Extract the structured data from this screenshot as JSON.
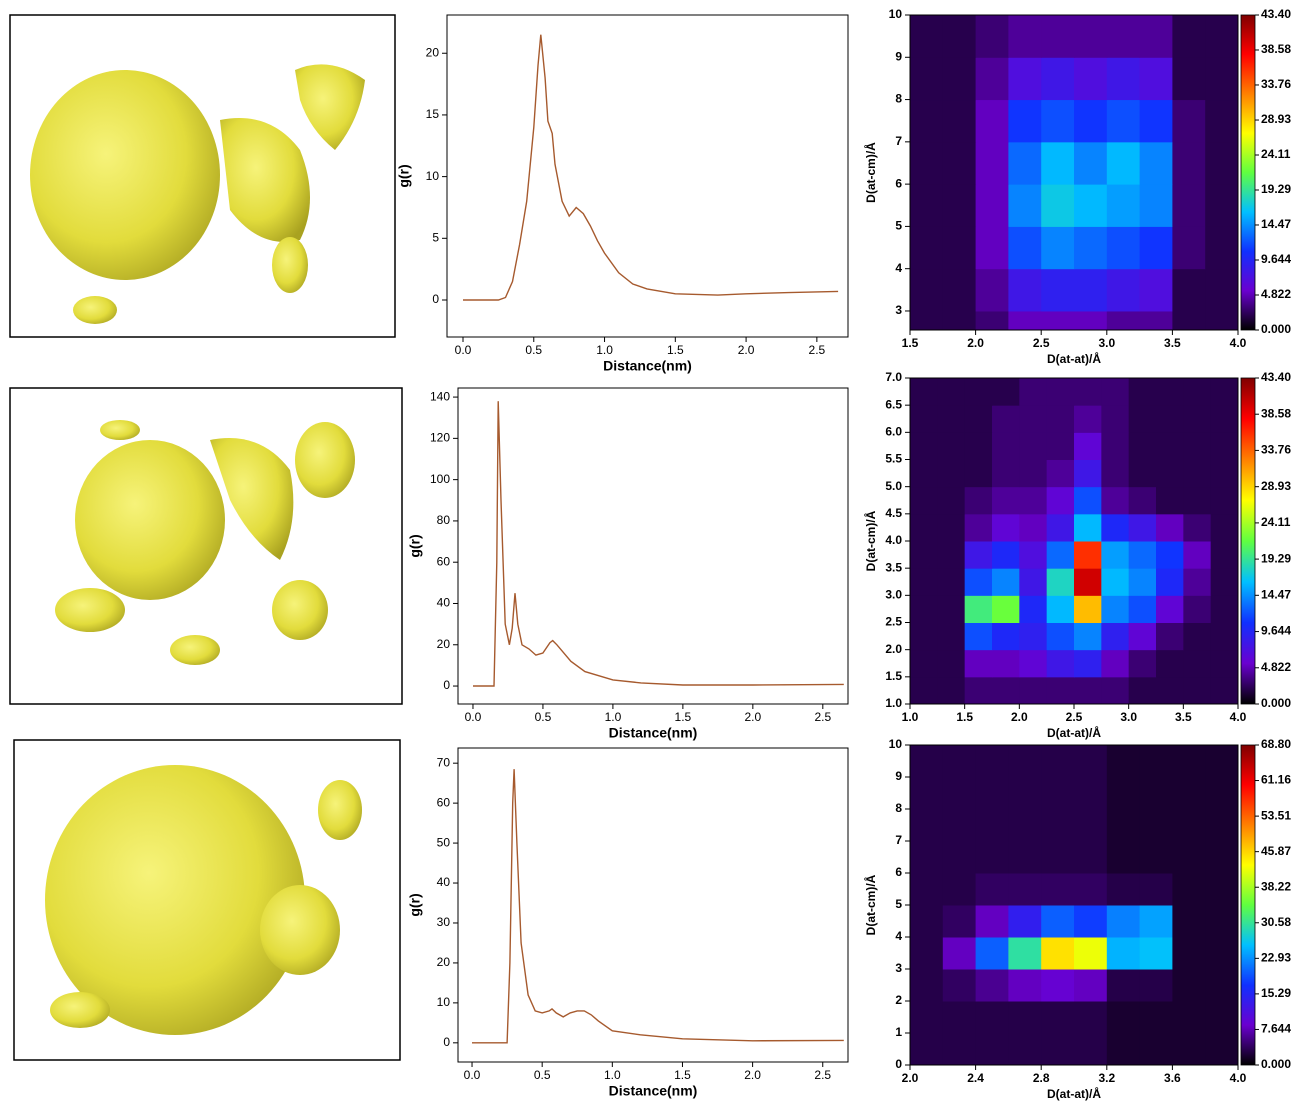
{
  "chart_data": [
    {
      "type": "line",
      "xlabel": "Distance(nm)",
      "ylabel": "g(r)",
      "color": "#a65a2e",
      "x": [
        0,
        0.25,
        0.3,
        0.35,
        0.4,
        0.45,
        0.5,
        0.53,
        0.55,
        0.58,
        0.6,
        0.63,
        0.65,
        0.7,
        0.75,
        0.8,
        0.85,
        0.9,
        0.95,
        1.0,
        1.1,
        1.2,
        1.3,
        1.5,
        1.8,
        2.0,
        2.3,
        2.65
      ],
      "values": [
        0,
        0,
        0.2,
        1.5,
        4.5,
        8,
        14,
        19,
        21.5,
        18,
        14.5,
        13.5,
        11,
        8,
        6.8,
        7.5,
        7,
        6,
        4.8,
        3.8,
        2.2,
        1.3,
        0.9,
        0.5,
        0.4,
        0.5,
        0.6,
        0.7
      ],
      "xlim": [
        -0.113,
        2.72
      ],
      "ylim": [
        -3,
        23.1
      ],
      "xticks": [
        {
          "value": 0,
          "label": "0.0"
        },
        0.5,
        {
          "value": 1,
          "label": "1.0"
        },
        1.5,
        {
          "value": 2,
          "label": "2.0"
        },
        2.5
      ],
      "yticks": [
        0,
        5,
        10,
        15,
        20
      ]
    },
    {
      "type": "heatmap",
      "xlabel": "D(at-at)/Å",
      "ylabel": "D(at-cm)/Å",
      "xlim": [
        1.5,
        4
      ],
      "ylim": [
        2.55,
        10
      ],
      "xticks": [
        1.5,
        {
          "value": 2,
          "label": "2.0"
        },
        2.5,
        {
          "value": 3,
          "label": "3.0"
        },
        3.5,
        {
          "value": 4,
          "label": "4.0"
        }
      ],
      "yticks": [
        3,
        4,
        5,
        6,
        7,
        8,
        9,
        10
      ],
      "xbins": [
        1.5,
        1.75,
        2,
        2.25,
        2.5,
        2.75,
        3,
        3.25,
        3.5,
        3.75,
        4
      ],
      "ybins": [
        2.55,
        3,
        4,
        5,
        6,
        7,
        8,
        9,
        10
      ],
      "z": [
        [
          2,
          2,
          3,
          5,
          5,
          5,
          4,
          4,
          2,
          2
        ],
        [
          2,
          2,
          4,
          8,
          9,
          9,
          8,
          7,
          2,
          2
        ],
        [
          2,
          2,
          5,
          12,
          14,
          13,
          12,
          11,
          3,
          2
        ],
        [
          2,
          2,
          5,
          14,
          17,
          16,
          15,
          14,
          3,
          2
        ],
        [
          2,
          2,
          5,
          13,
          16,
          14,
          16,
          14,
          3,
          2
        ],
        [
          2,
          2,
          5,
          11,
          12,
          11,
          12,
          11,
          3,
          2
        ],
        [
          2,
          2,
          4,
          7,
          8,
          7,
          8,
          7,
          2,
          2
        ],
        [
          2,
          2,
          3,
          4,
          4,
          4,
          4,
          4,
          2,
          2
        ]
      ],
      "zlim": [
        0,
        43.4
      ],
      "zticks": [
        {
          "value": 0,
          "label": "0.000"
        },
        4.822,
        9.644,
        14.47,
        19.29,
        24.11,
        28.93,
        33.76,
        38.58,
        {
          "value": 43.4,
          "label": "43.40"
        }
      ],
      "colors": [
        "#000000",
        "#6a00d0",
        "#1030ff",
        "#00c0ff",
        "#60ff40",
        "#ffff00",
        "#ff8000",
        "#ff0000",
        "#800000"
      ]
    },
    {
      "type": "line",
      "xlabel": "Distance(nm)",
      "ylabel": "g(r)",
      "color": "#a65a2e",
      "x": [
        0,
        0.15,
        0.17,
        0.18,
        0.2,
        0.23,
        0.26,
        0.28,
        0.3,
        0.32,
        0.35,
        0.4,
        0.45,
        0.5,
        0.55,
        0.57,
        0.6,
        0.7,
        0.8,
        1.0,
        1.2,
        1.5,
        2.0,
        2.65
      ],
      "values": [
        0,
        0,
        60,
        138,
        90,
        30,
        20,
        28,
        45,
        30,
        20,
        18,
        15,
        16,
        21,
        22,
        20,
        12,
        7,
        3,
        1.5,
        0.5,
        0.5,
        0.8
      ],
      "xlim": [
        -0.107,
        2.68
      ],
      "ylim": [
        -8.7,
        144.4
      ],
      "xticks": [
        {
          "value": 0,
          "label": "0.0"
        },
        0.5,
        {
          "value": 1,
          "label": "1.0"
        },
        1.5,
        {
          "value": 2,
          "label": "2.0"
        },
        2.5
      ],
      "yticks": [
        0,
        20,
        40,
        60,
        80,
        100,
        120,
        140
      ]
    },
    {
      "type": "heatmap",
      "xlabel": "D(at-at)/Å",
      "ylabel": "D(at-cm)/Å",
      "xlim": [
        1,
        4
      ],
      "ylim": [
        1,
        7
      ],
      "xticks": [
        {
          "value": 1,
          "label": "1.0"
        },
        1.5,
        {
          "value": 2,
          "label": "2.0"
        },
        2.5,
        {
          "value": 3,
          "label": "3.0"
        },
        3.5,
        {
          "value": 4,
          "label": "4.0"
        }
      ],
      "yticks": [
        {
          "value": 1,
          "label": "1.0"
        },
        1.5,
        {
          "value": 2,
          "label": "2.0"
        },
        2.5,
        {
          "value": 3,
          "label": "3.0"
        },
        3.5,
        {
          "value": 4,
          "label": "4.0"
        },
        4.5,
        {
          "value": 5,
          "label": "5.0"
        },
        5.5,
        {
          "value": 6,
          "label": "6.0"
        },
        6.5,
        {
          "value": 7,
          "label": "7.0"
        }
      ],
      "xbins": [
        1,
        1.25,
        1.5,
        1.75,
        2,
        2.25,
        2.5,
        2.75,
        3,
        3.25,
        3.5,
        3.75,
        4
      ],
      "ybins": [
        1,
        1.5,
        2,
        2.5,
        3,
        3.5,
        4,
        4.5,
        5,
        5.5,
        6,
        6.5,
        7
      ],
      "z": [
        [
          2,
          2,
          3,
          3,
          3,
          3,
          3,
          3,
          2,
          2,
          2,
          2
        ],
        [
          2,
          2,
          5,
          5,
          6,
          8,
          9,
          5,
          3,
          2,
          2,
          2
        ],
        [
          2,
          2,
          12,
          10,
          9,
          12,
          14,
          9,
          6,
          3,
          2,
          2
        ],
        [
          2,
          2,
          20,
          22,
          10,
          16,
          30,
          14,
          12,
          6,
          3,
          2
        ],
        [
          2,
          2,
          12,
          14,
          8,
          18,
          40,
          16,
          14,
          10,
          4,
          2
        ],
        [
          2,
          2,
          8,
          10,
          7,
          13,
          36,
          15,
          13,
          11,
          5,
          2
        ],
        [
          2,
          2,
          4,
          6,
          5,
          8,
          16,
          10,
          8,
          5,
          3,
          2
        ],
        [
          2,
          2,
          3,
          4,
          4,
          6,
          12,
          4,
          3,
          2,
          2,
          2
        ],
        [
          2,
          2,
          2,
          3,
          3,
          4,
          8,
          3,
          2,
          2,
          2,
          2
        ],
        [
          2,
          2,
          2,
          3,
          3,
          3,
          6,
          3,
          2,
          2,
          2,
          2
        ],
        [
          2,
          2,
          2,
          3,
          3,
          3,
          4,
          3,
          2,
          2,
          2,
          2
        ],
        [
          2,
          2,
          2,
          2,
          3,
          3,
          3,
          3,
          2,
          2,
          2,
          2
        ]
      ],
      "zlim": [
        0,
        43.4
      ],
      "zticks": [
        {
          "value": 0,
          "label": "0.000"
        },
        4.822,
        9.644,
        14.47,
        19.29,
        24.11,
        28.93,
        33.76,
        38.58,
        {
          "value": 43.4,
          "label": "43.40"
        }
      ],
      "colors": [
        "#000000",
        "#6a00d0",
        "#1030ff",
        "#00c0ff",
        "#60ff40",
        "#ffff00",
        "#ff8000",
        "#ff0000",
        "#800000"
      ]
    },
    {
      "type": "line",
      "xlabel": "Distance(nm)",
      "ylabel": "g(r)",
      "color": "#a65a2e",
      "x": [
        0,
        0.25,
        0.27,
        0.29,
        0.3,
        0.32,
        0.35,
        0.4,
        0.45,
        0.5,
        0.55,
        0.57,
        0.6,
        0.65,
        0.7,
        0.75,
        0.8,
        0.85,
        0.9,
        1.0,
        1.2,
        1.5,
        2.0,
        2.65
      ],
      "values": [
        0,
        0,
        20,
        60,
        68.5,
        50,
        25,
        12,
        8,
        7.5,
        8,
        8.5,
        7.5,
        6.5,
        7.5,
        8,
        8,
        7,
        5.5,
        3,
        2,
        1,
        0.5,
        0.6
      ],
      "xlim": [
        -0.1,
        2.68
      ],
      "ylim": [
        -4.8,
        73.8
      ],
      "xticks": [
        {
          "value": 0,
          "label": "0.0"
        },
        0.5,
        {
          "value": 1,
          "label": "1.0"
        },
        1.5,
        {
          "value": 2,
          "label": "2.0"
        },
        2.5
      ],
      "yticks": [
        0,
        10,
        20,
        30,
        40,
        50,
        60,
        70
      ]
    },
    {
      "type": "heatmap",
      "xlabel": "D(at-at)/Å",
      "ylabel": "D(at-cm)/Å",
      "xlim": [
        2,
        4
      ],
      "ylim": [
        0,
        10
      ],
      "xticks": [
        {
          "value": 2,
          "label": "2.0"
        },
        2.4,
        2.8,
        3.2,
        3.6,
        {
          "value": 4,
          "label": "4.0"
        }
      ],
      "yticks": [
        0,
        1,
        2,
        3,
        4,
        5,
        6,
        7,
        8,
        9,
        10
      ],
      "xbins": [
        2,
        2.2,
        2.4,
        2.6,
        2.8,
        3,
        3.2,
        3.4,
        3.6,
        3.8,
        4
      ],
      "ybins": [
        0,
        1,
        2,
        3,
        4,
        5,
        6,
        7,
        8,
        9,
        10
      ],
      "z": [
        [
          3,
          3,
          3,
          3,
          3,
          3,
          2,
          2,
          2,
          2
        ],
        [
          3,
          3,
          3,
          3,
          3,
          3,
          2,
          2,
          2,
          2
        ],
        [
          3,
          4,
          6,
          8,
          9,
          8,
          3,
          3,
          2,
          2
        ],
        [
          3,
          8,
          20,
          30,
          45,
          42,
          25,
          26,
          2,
          2
        ],
        [
          3,
          4,
          8,
          14,
          20,
          18,
          22,
          24,
          2,
          2
        ],
        [
          3,
          3,
          4,
          4,
          4,
          4,
          3,
          3,
          2,
          2
        ],
        [
          3,
          3,
          3,
          3,
          3,
          3,
          2,
          2,
          2,
          2
        ],
        [
          3,
          3,
          3,
          3,
          3,
          3,
          2,
          2,
          2,
          2
        ],
        [
          3,
          3,
          3,
          3,
          3,
          3,
          2,
          2,
          2,
          2
        ],
        [
          3,
          3,
          3,
          3,
          3,
          3,
          2,
          2,
          2,
          2
        ]
      ],
      "zlim": [
        0,
        68.8
      ],
      "zticks": [
        {
          "value": 0,
          "label": "0.000"
        },
        7.644,
        15.29,
        22.93,
        30.58,
        38.22,
        45.87,
        53.51,
        61.16,
        {
          "value": 68.8,
          "label": "68.80"
        }
      ],
      "colors": [
        "#000000",
        "#6a00d0",
        "#1030ff",
        "#00c0ff",
        "#60ff40",
        "#ffff00",
        "#ff8000",
        "#ff0000",
        "#800000"
      ]
    }
  ]
}
